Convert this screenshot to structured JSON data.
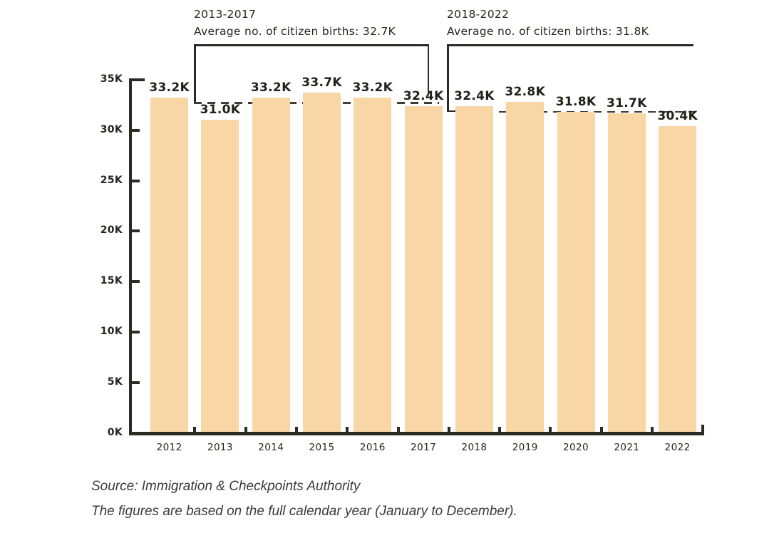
{
  "chart_data": {
    "type": "bar",
    "title": "",
    "xlabel": "",
    "ylabel": "",
    "categories": [
      "2012",
      "2013",
      "2014",
      "2015",
      "2016",
      "2017",
      "2018",
      "2019",
      "2020",
      "2021",
      "2022"
    ],
    "values": [
      33.2,
      31.0,
      33.2,
      33.7,
      33.2,
      32.4,
      32.4,
      32.8,
      31.8,
      31.7,
      30.4
    ],
    "value_labels": [
      "33.2K",
      "31.0K",
      "33.2K",
      "33.7K",
      "33.2K",
      "32.4K",
      "32.4K",
      "32.8K",
      "31.8K",
      "31.7K",
      "30.4K"
    ],
    "unit": "K",
    "ylim": [
      0,
      35
    ],
    "y_ticks": [
      {
        "value": 35,
        "label": "35K"
      },
      {
        "value": 30,
        "label": "30K"
      },
      {
        "value": 25,
        "label": "25K"
      },
      {
        "value": 20,
        "label": "20K"
      },
      {
        "value": 15,
        "label": "15K"
      },
      {
        "value": 10,
        "label": "10K"
      },
      {
        "value": 5,
        "label": "5K"
      },
      {
        "value": 0,
        "label": "0K"
      }
    ],
    "grid": false,
    "legend": "none",
    "annotations": [
      {
        "period": "2013-2017",
        "text": "Average no. of citizen births: 32.7K",
        "avg_value": 32.7,
        "span_start": "2013",
        "span_end": "2017"
      },
      {
        "period": "2018-2022",
        "text": "Average no. of citizen births: 31.8K",
        "avg_value": 31.8,
        "span_start": "2018",
        "span_end": "2022"
      }
    ],
    "colors": {
      "bar_fill": "#f9d6a5",
      "axis": "#2b2a24",
      "dashed_line": "#3d3c35",
      "text": "#26251f"
    }
  },
  "footer": {
    "source_line": "Source: Immigration & Checkpoints Authority",
    "note_line": "The figures are based on the full calendar year (January to December)."
  }
}
